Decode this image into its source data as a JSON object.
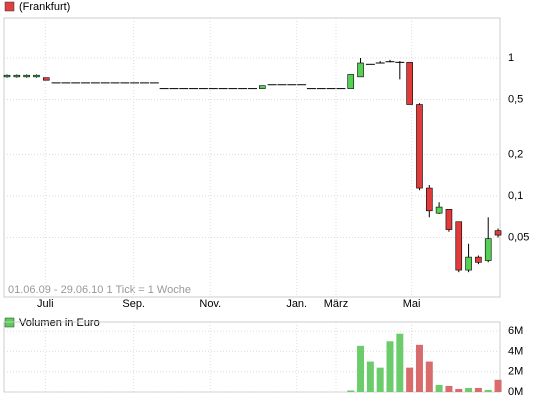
{
  "chart_data": [
    {
      "type": "candlestick",
      "legend": "(Frankfurt)",
      "legend_color": "#e04040",
      "annotation": "01.06.09 - 29.06.10    1 Tick = 1 Woche",
      "up_color": "#55d055",
      "down_color": "#e03a3a",
      "log_scale": true,
      "grid": true,
      "xlim": [
        -0.3055,
        50.2
      ],
      "xticks": [
        {
          "value": 3.9,
          "label": "Juli"
        },
        {
          "value": 12.9,
          "label": "Sep."
        },
        {
          "value": 20.7,
          "label": "Nov."
        },
        {
          "value": 29.5,
          "label": "Jan."
        },
        {
          "value": 33.5,
          "label": "März"
        },
        {
          "value": 41.2,
          "label": "Mai"
        }
      ],
      "ylim": [
        0.0185,
        1.95
      ],
      "yticks": [
        1,
        {
          "value": 0.5,
          "label": "0,5"
        },
        {
          "value": 0.2,
          "label": "0,2"
        },
        {
          "value": 0.1,
          "label": "0,1"
        },
        {
          "value": 0.05,
          "label": "0,05"
        }
      ],
      "open": [
        0.73,
        0.73,
        0.73,
        0.73,
        0.72,
        0.66,
        0.66,
        0.66,
        0.66,
        0.66,
        0.66,
        0.66,
        0.66,
        0.66,
        0.66,
        0.66,
        0.6,
        0.6,
        0.6,
        0.6,
        0.6,
        0.6,
        0.6,
        0.6,
        0.6,
        0.6,
        0.6,
        0.64,
        0.64,
        0.64,
        0.64,
        0.6,
        0.6,
        0.6,
        0.6,
        0.6,
        0.73,
        0.9,
        0.92,
        0.94,
        0.93,
        0.93,
        0.46,
        0.114,
        0.075,
        0.08,
        0.065,
        0.029,
        0.036,
        0.034,
        0.056
      ],
      "high": [
        0.76,
        0.76,
        0.76,
        0.76,
        0.72,
        0.66,
        0.66,
        0.66,
        0.66,
        0.66,
        0.66,
        0.66,
        0.66,
        0.66,
        0.66,
        0.66,
        0.6,
        0.6,
        0.6,
        0.6,
        0.6,
        0.6,
        0.6,
        0.6,
        0.6,
        0.6,
        0.63,
        0.64,
        0.64,
        0.64,
        0.64,
        0.6,
        0.6,
        0.6,
        0.6,
        0.76,
        1.0,
        0.9,
        0.95,
        0.97,
        0.95,
        0.93,
        0.47,
        0.12,
        0.09,
        0.08,
        0.065,
        0.045,
        0.037,
        0.07,
        0.058
      ],
      "low": [
        0.72,
        0.72,
        0.72,
        0.72,
        0.69,
        0.66,
        0.66,
        0.66,
        0.66,
        0.66,
        0.66,
        0.66,
        0.66,
        0.66,
        0.66,
        0.66,
        0.6,
        0.6,
        0.6,
        0.6,
        0.6,
        0.6,
        0.6,
        0.6,
        0.6,
        0.6,
        0.6,
        0.64,
        0.64,
        0.64,
        0.64,
        0.6,
        0.6,
        0.6,
        0.6,
        0.6,
        0.73,
        0.9,
        0.92,
        0.93,
        0.7,
        0.46,
        0.11,
        0.07,
        0.074,
        0.055,
        0.028,
        0.028,
        0.032,
        0.033,
        0.05
      ],
      "close": [
        0.75,
        0.75,
        0.75,
        0.75,
        0.69,
        0.66,
        0.66,
        0.66,
        0.66,
        0.66,
        0.66,
        0.66,
        0.66,
        0.66,
        0.66,
        0.66,
        0.6,
        0.6,
        0.6,
        0.6,
        0.6,
        0.6,
        0.6,
        0.6,
        0.6,
        0.6,
        0.63,
        0.64,
        0.64,
        0.64,
        0.64,
        0.6,
        0.6,
        0.6,
        0.6,
        0.76,
        0.92,
        0.9,
        0.92,
        0.94,
        0.93,
        0.46,
        0.114,
        0.078,
        0.083,
        0.057,
        0.029,
        0.036,
        0.033,
        0.049,
        0.052
      ]
    },
    {
      "type": "bar",
      "legend": "Volumen in Euro",
      "legend_color": "#55d055",
      "up_color": "#6ccc6c",
      "down_color": "#d86c6c",
      "grid": true,
      "ylim": [
        0,
        6900000
      ],
      "yticks": [
        {
          "value": 6000000,
          "label": "6M"
        },
        {
          "value": 4000000,
          "label": "4M"
        },
        {
          "value": 2000000,
          "label": "2M"
        },
        {
          "value": 0,
          "label": "0M"
        }
      ],
      "values": [
        0,
        0,
        0,
        0,
        0,
        0,
        0,
        0,
        0,
        0,
        0,
        0,
        0,
        0,
        0,
        0,
        0,
        0,
        0,
        0,
        0,
        0,
        0,
        0,
        0,
        0,
        0,
        0,
        0,
        0,
        0,
        0,
        0,
        0,
        0,
        150000,
        4550000,
        3000000,
        2400000,
        5000000,
        5750000,
        2400000,
        4650000,
        3000000,
        700000,
        600000,
        300000,
        400000,
        400000,
        200000,
        1200000
      ]
    }
  ]
}
